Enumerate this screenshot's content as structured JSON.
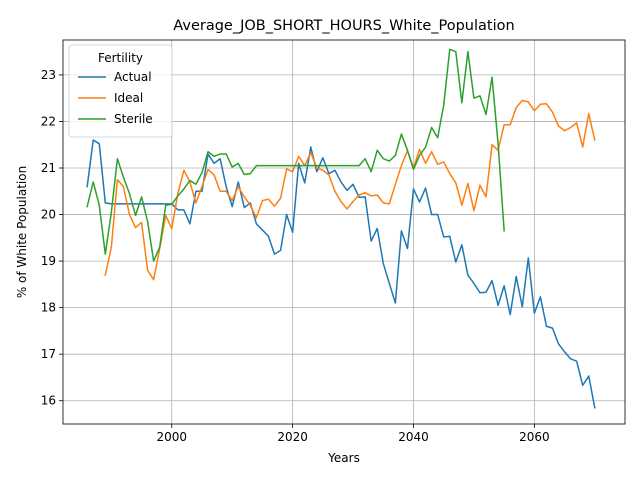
{
  "chart_data": {
    "type": "line",
    "title": "Average_JOB_SHORT_HOURS_White_Population",
    "xlabel": "Years",
    "ylabel": "% of White Population",
    "xlim": [
      1982,
      2075
    ],
    "ylim": [
      15.5,
      23.75
    ],
    "xticks": [
      2000,
      2020,
      2040,
      2060
    ],
    "yticks": [
      16,
      17,
      18,
      19,
      20,
      21,
      22,
      23
    ],
    "grid": true,
    "legend": {
      "title": "Fertility",
      "placement": "top-left"
    },
    "series": [
      {
        "name": "Actual",
        "color": "#1f77b4",
        "points": [
          [
            1986,
            20.6
          ],
          [
            1987,
            21.6
          ],
          [
            1988,
            21.52
          ],
          [
            1989,
            20.25
          ],
          [
            1990,
            20.23
          ],
          [
            1991,
            20.23
          ],
          [
            1992,
            20.23
          ],
          [
            1993,
            20.23
          ],
          [
            1994,
            20.23
          ],
          [
            1995,
            20.23
          ],
          [
            1996,
            20.23
          ],
          [
            1997,
            20.23
          ],
          [
            1998,
            20.23
          ],
          [
            1999,
            20.23
          ],
          [
            2000,
            20.23
          ],
          [
            2001,
            20.1
          ],
          [
            2002,
            20.1
          ],
          [
            2003,
            19.8
          ],
          [
            2004,
            20.5
          ],
          [
            2005,
            20.5
          ],
          [
            2006,
            21.3
          ],
          [
            2007,
            21.1
          ],
          [
            2008,
            21.2
          ],
          [
            2009,
            20.6
          ],
          [
            2010,
            20.17
          ],
          [
            2011,
            20.7
          ],
          [
            2012,
            20.15
          ],
          [
            2013,
            20.25
          ],
          [
            2014,
            19.8
          ],
          [
            2015,
            19.67
          ],
          [
            2016,
            19.53
          ],
          [
            2017,
            19.15
          ],
          [
            2018,
            19.23
          ],
          [
            2019,
            20.0
          ],
          [
            2020,
            19.62
          ],
          [
            2021,
            21.1
          ],
          [
            2022,
            20.68
          ],
          [
            2023,
            21.45
          ],
          [
            2024,
            20.92
          ],
          [
            2025,
            21.22
          ],
          [
            2026,
            20.88
          ],
          [
            2027,
            20.95
          ],
          [
            2028,
            20.7
          ],
          [
            2029,
            20.52
          ],
          [
            2030,
            20.65
          ],
          [
            2031,
            20.37
          ],
          [
            2032,
            20.38
          ],
          [
            2033,
            19.43
          ],
          [
            2034,
            19.7
          ],
          [
            2035,
            18.95
          ],
          [
            2036,
            18.52
          ],
          [
            2037,
            18.1
          ],
          [
            2038,
            19.65
          ],
          [
            2039,
            19.27
          ],
          [
            2040,
            20.55
          ],
          [
            2041,
            20.27
          ],
          [
            2042,
            20.57
          ],
          [
            2043,
            20.0
          ],
          [
            2044,
            20.0
          ],
          [
            2045,
            19.52
          ],
          [
            2046,
            19.53
          ],
          [
            2047,
            18.98
          ],
          [
            2048,
            19.35
          ],
          [
            2049,
            18.7
          ],
          [
            2050,
            18.52
          ],
          [
            2051,
            18.32
          ],
          [
            2052,
            18.33
          ],
          [
            2053,
            18.58
          ],
          [
            2054,
            18.05
          ],
          [
            2055,
            18.47
          ],
          [
            2056,
            17.85
          ],
          [
            2057,
            18.67
          ],
          [
            2058,
            18.02
          ],
          [
            2059,
            19.07
          ],
          [
            2060,
            17.88
          ],
          [
            2061,
            18.23
          ],
          [
            2062,
            17.6
          ],
          [
            2063,
            17.56
          ],
          [
            2064,
            17.22
          ],
          [
            2065,
            17.05
          ],
          [
            2066,
            16.9
          ],
          [
            2067,
            16.85
          ],
          [
            2068,
            16.33
          ],
          [
            2069,
            16.53
          ],
          [
            2070,
            15.85
          ]
        ]
      },
      {
        "name": "Ideal",
        "color": "#ff7f0e",
        "points": [
          [
            1989,
            18.7
          ],
          [
            1990,
            19.3
          ],
          [
            1991,
            20.75
          ],
          [
            1992,
            20.6
          ],
          [
            1993,
            20.0
          ],
          [
            1994,
            19.72
          ],
          [
            1995,
            19.83
          ],
          [
            1996,
            18.8
          ],
          [
            1997,
            18.6
          ],
          [
            1998,
            19.27
          ],
          [
            1999,
            19.98
          ],
          [
            2000,
            19.7
          ],
          [
            2001,
            20.45
          ],
          [
            2002,
            20.95
          ],
          [
            2003,
            20.7
          ],
          [
            2004,
            20.25
          ],
          [
            2005,
            20.6
          ],
          [
            2006,
            20.97
          ],
          [
            2007,
            20.85
          ],
          [
            2008,
            20.5
          ],
          [
            2009,
            20.5
          ],
          [
            2010,
            20.3
          ],
          [
            2011,
            20.6
          ],
          [
            2012,
            20.38
          ],
          [
            2013,
            20.2
          ],
          [
            2014,
            19.93
          ],
          [
            2015,
            20.3
          ],
          [
            2016,
            20.33
          ],
          [
            2017,
            20.18
          ],
          [
            2018,
            20.35
          ],
          [
            2019,
            20.98
          ],
          [
            2020,
            20.92
          ],
          [
            2021,
            21.25
          ],
          [
            2022,
            21.05
          ],
          [
            2023,
            21.33
          ],
          [
            2024,
            21.0
          ],
          [
            2025,
            20.95
          ],
          [
            2026,
            20.85
          ],
          [
            2027,
            20.5
          ],
          [
            2028,
            20.28
          ],
          [
            2029,
            20.12
          ],
          [
            2030,
            20.28
          ],
          [
            2031,
            20.42
          ],
          [
            2032,
            20.47
          ],
          [
            2033,
            20.4
          ],
          [
            2034,
            20.42
          ],
          [
            2035,
            20.25
          ],
          [
            2036,
            20.23
          ],
          [
            2037,
            20.65
          ],
          [
            2038,
            21.05
          ],
          [
            2039,
            21.37
          ],
          [
            2040,
            21.0
          ],
          [
            2041,
            21.4
          ],
          [
            2042,
            21.1
          ],
          [
            2043,
            21.35
          ],
          [
            2044,
            21.08
          ],
          [
            2045,
            21.13
          ],
          [
            2046,
            20.88
          ],
          [
            2047,
            20.68
          ],
          [
            2048,
            20.2
          ],
          [
            2049,
            20.67
          ],
          [
            2050,
            20.08
          ],
          [
            2051,
            20.63
          ],
          [
            2052,
            20.38
          ],
          [
            2053,
            21.5
          ],
          [
            2054,
            21.38
          ],
          [
            2055,
            21.93
          ],
          [
            2056,
            21.93
          ],
          [
            2057,
            22.3
          ],
          [
            2058,
            22.45
          ],
          [
            2059,
            22.42
          ],
          [
            2060,
            22.23
          ],
          [
            2061,
            22.37
          ],
          [
            2062,
            22.38
          ],
          [
            2063,
            22.2
          ],
          [
            2064,
            21.9
          ],
          [
            2065,
            21.8
          ],
          [
            2066,
            21.87
          ],
          [
            2067,
            21.97
          ],
          [
            2068,
            21.45
          ],
          [
            2069,
            22.17
          ],
          [
            2070,
            21.6
          ]
        ]
      },
      {
        "name": "Sterile",
        "color": "#2ca02c",
        "points": [
          [
            1986,
            20.17
          ],
          [
            1987,
            20.7
          ],
          [
            1988,
            20.2
          ],
          [
            1989,
            19.15
          ],
          [
            1990,
            20.05
          ],
          [
            1991,
            21.2
          ],
          [
            1992,
            20.8
          ],
          [
            1993,
            20.45
          ],
          [
            1994,
            19.98
          ],
          [
            1995,
            20.38
          ],
          [
            1996,
            19.85
          ],
          [
            1997,
            19.0
          ],
          [
            1998,
            19.3
          ],
          [
            1999,
            20.2
          ],
          [
            2000,
            20.22
          ],
          [
            2001,
            20.4
          ],
          [
            2002,
            20.55
          ],
          [
            2003,
            20.73
          ],
          [
            2004,
            20.65
          ],
          [
            2005,
            20.9
          ],
          [
            2006,
            21.35
          ],
          [
            2007,
            21.25
          ],
          [
            2008,
            21.3
          ],
          [
            2009,
            21.3
          ],
          [
            2010,
            21.02
          ],
          [
            2011,
            21.1
          ],
          [
            2012,
            20.86
          ],
          [
            2013,
            20.88
          ],
          [
            2014,
            21.05
          ],
          [
            2015,
            21.05
          ],
          [
            2016,
            21.05
          ],
          [
            2017,
            21.05
          ],
          [
            2018,
            21.05
          ],
          [
            2019,
            21.05
          ],
          [
            2020,
            21.05
          ],
          [
            2021,
            21.05
          ],
          [
            2022,
            21.05
          ],
          [
            2023,
            21.05
          ],
          [
            2024,
            21.05
          ],
          [
            2025,
            21.05
          ],
          [
            2026,
            21.05
          ],
          [
            2027,
            21.05
          ],
          [
            2028,
            21.05
          ],
          [
            2029,
            21.05
          ],
          [
            2030,
            21.05
          ],
          [
            2031,
            21.05
          ],
          [
            2032,
            21.2
          ],
          [
            2033,
            20.92
          ],
          [
            2034,
            21.38
          ],
          [
            2035,
            21.2
          ],
          [
            2036,
            21.15
          ],
          [
            2037,
            21.27
          ],
          [
            2038,
            21.73
          ],
          [
            2039,
            21.38
          ],
          [
            2040,
            20.97
          ],
          [
            2041,
            21.27
          ],
          [
            2042,
            21.45
          ],
          [
            2043,
            21.87
          ],
          [
            2044,
            21.65
          ],
          [
            2045,
            22.35
          ],
          [
            2046,
            23.55
          ],
          [
            2047,
            23.5
          ],
          [
            2048,
            22.4
          ],
          [
            2049,
            23.5
          ],
          [
            2050,
            22.5
          ],
          [
            2051,
            22.55
          ],
          [
            2052,
            22.15
          ],
          [
            2053,
            22.95
          ],
          [
            2054,
            21.52
          ],
          [
            2055,
            19.65
          ]
        ]
      }
    ]
  }
}
